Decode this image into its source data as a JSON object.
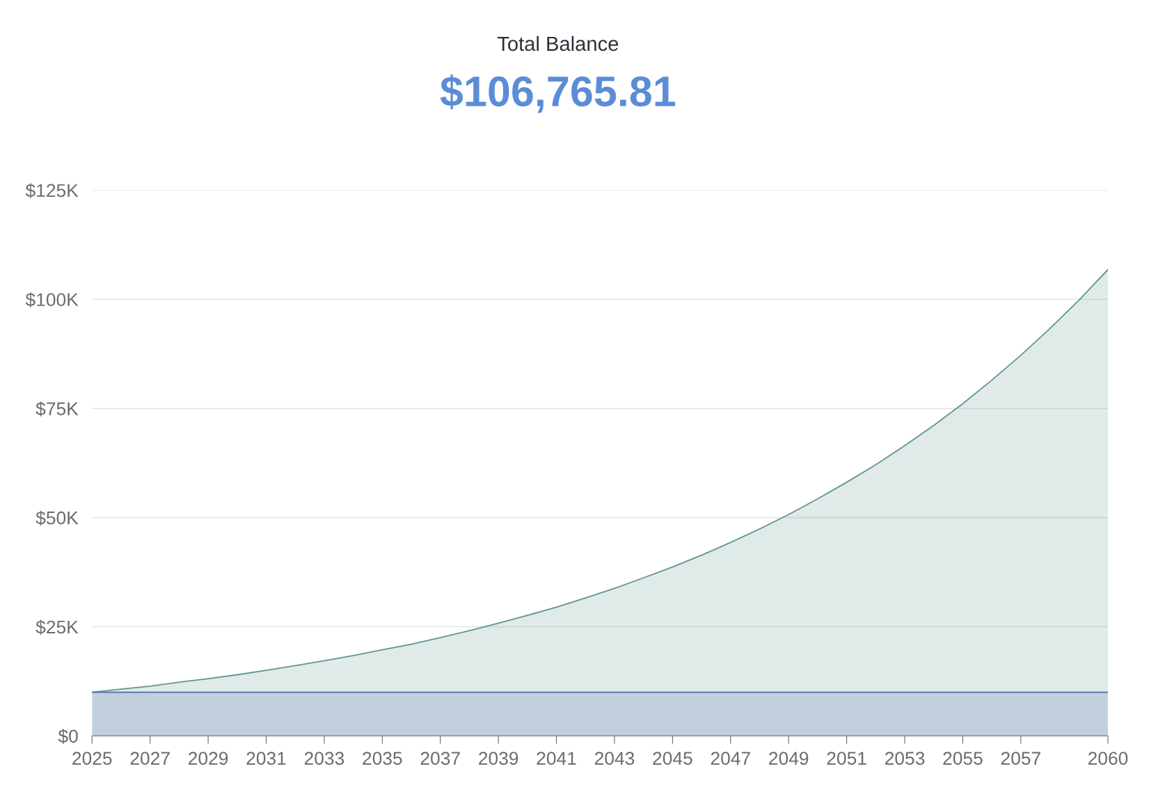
{
  "chart_data": {
    "type": "area",
    "title": "Total Balance",
    "subtitle": "$106,765.81",
    "x": [
      2025,
      2026,
      2027,
      2028,
      2029,
      2030,
      2031,
      2032,
      2033,
      2034,
      2035,
      2036,
      2037,
      2038,
      2039,
      2040,
      2041,
      2042,
      2043,
      2044,
      2045,
      2046,
      2047,
      2048,
      2049,
      2050,
      2051,
      2052,
      2053,
      2054,
      2055,
      2056,
      2057,
      2058,
      2059,
      2060
    ],
    "series": [
      {
        "color": "#5e9690",
        "values": [
          10000,
          10700,
          11400,
          12300,
          13100,
          14000,
          15000,
          16100,
          17200,
          18400,
          19700,
          21000,
          22500,
          24100,
          25800,
          27600,
          29500,
          31600,
          33800,
          36200,
          38700,
          41400,
          44300,
          47400,
          50700,
          54300,
          58100,
          62100,
          66500,
          71100,
          76100,
          81500,
          87200,
          93300,
          99800,
          106800
        ]
      },
      {
        "color": "#4a6aa8",
        "values": [
          10000,
          10000,
          10000,
          10000,
          10000,
          10000,
          10000,
          10000,
          10000,
          10000,
          10000,
          10000,
          10000,
          10000,
          10000,
          10000,
          10000,
          10000,
          10000,
          10000,
          10000,
          10000,
          10000,
          10000,
          10000,
          10000,
          10000,
          10000,
          10000,
          10000,
          10000,
          10000,
          10000,
          10000,
          10000,
          10000
        ]
      }
    ],
    "xlim": [
      2025,
      2060
    ],
    "xticks": [
      2025,
      2027,
      2029,
      2031,
      2033,
      2035,
      2037,
      2039,
      2041,
      2043,
      2045,
      2047,
      2049,
      2051,
      2053,
      2055,
      2057,
      2060
    ],
    "ylim": [
      0,
      125000
    ],
    "yticks": [
      {
        "value": 0,
        "label": "$0"
      },
      {
        "value": 25000,
        "label": "$25K"
      },
      {
        "value": 50000,
        "label": "$50K"
      },
      {
        "value": 75000,
        "label": "$75K"
      },
      {
        "value": 100000,
        "label": "$100K"
      },
      {
        "value": 125000,
        "label": "$125K"
      }
    ],
    "grid": "y"
  }
}
